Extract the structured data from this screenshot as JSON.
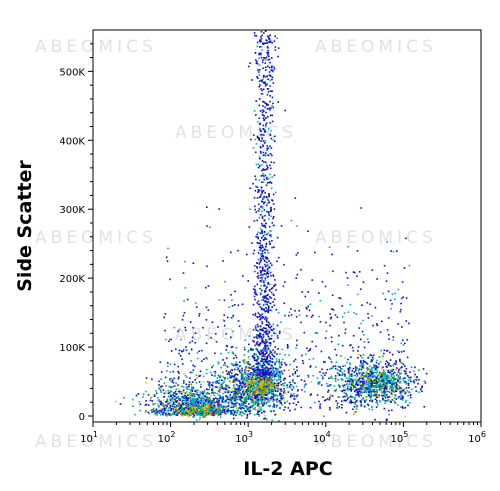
{
  "chart_data": {
    "type": "scatter",
    "plot_style": "flow cytometry density dot plot",
    "xlabel": "IL-2 APC",
    "ylabel": "Side Scatter",
    "x_scale": "log",
    "xlim": [
      10,
      1000000
    ],
    "ylim": [
      0,
      560000
    ],
    "x_ticks": [
      {
        "value": 10,
        "base": "10",
        "exp": "1"
      },
      {
        "value": 100,
        "base": "10",
        "exp": "2"
      },
      {
        "value": 1000,
        "base": "10",
        "exp": "3"
      },
      {
        "value": 10000,
        "base": "10",
        "exp": "4"
      },
      {
        "value": 100000,
        "base": "10",
        "exp": "5"
      },
      {
        "value": 1000000,
        "base": "10",
        "exp": "6"
      }
    ],
    "y_ticks": [
      {
        "value": 0,
        "label": "0"
      },
      {
        "value": 100000,
        "label": "100K"
      },
      {
        "value": 200000,
        "label": "200K"
      },
      {
        "value": 300000,
        "label": "300K"
      },
      {
        "value": 400000,
        "label": "400K"
      },
      {
        "value": 500000,
        "label": "500K"
      }
    ],
    "density_colors": [
      "#1010c8",
      "#00a8d8",
      "#10b030",
      "#e0d000",
      "#ff8000",
      "#e01010"
    ],
    "populations": [
      {
        "name": "low",
        "x_log_center": 2.35,
        "y_center": 22000,
        "dense_y_center": 10000
      },
      {
        "name": "mid",
        "x_log_center": 3.1,
        "y_center": 45000,
        "dense_y_center": 45000
      },
      {
        "name": "vertical-streak",
        "x_log_center": 3.2,
        "y_range": [
          60000,
          560000
        ]
      },
      {
        "name": "high",
        "x_log_center": 4.6,
        "y_center": 48000,
        "dense_y_center": 50000
      }
    ]
  },
  "watermark": "ABEOMICS"
}
